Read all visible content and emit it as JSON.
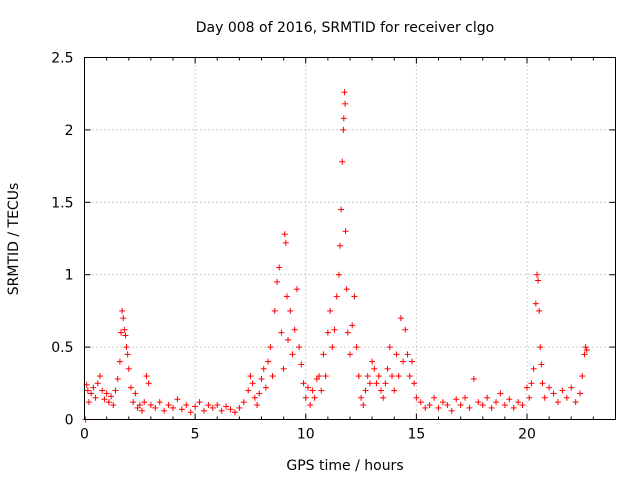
{
  "chart_data": {
    "type": "scatter",
    "title": "Day 008 of 2016, SRMTID for receiver clgo",
    "xlabel": "GPS time / hours",
    "ylabel": "SRMTID / TECUs",
    "xlim": [
      0,
      24
    ],
    "ylim": [
      0,
      2.5
    ],
    "x_ticks": [
      0,
      5,
      10,
      15,
      20
    ],
    "y_ticks": [
      0,
      0.5,
      1,
      1.5,
      2,
      2.5
    ],
    "x_tick_labels": [
      "0",
      "5",
      "10",
      "15",
      "20"
    ],
    "y_tick_labels": [
      "0",
      "0.5",
      "1",
      "1.5",
      "2",
      "2.5"
    ],
    "grid": true,
    "marker": "plus",
    "color": "#ff0000",
    "series": [
      {
        "name": "clgo",
        "points": [
          [
            0.05,
            0.0
          ],
          [
            0.1,
            0.24
          ],
          [
            0.15,
            0.2
          ],
          [
            0.2,
            0.12
          ],
          [
            0.3,
            0.18
          ],
          [
            0.4,
            0.22
          ],
          [
            0.5,
            0.15
          ],
          [
            0.6,
            0.25
          ],
          [
            0.7,
            0.3
          ],
          [
            0.8,
            0.2
          ],
          [
            0.9,
            0.14
          ],
          [
            1.0,
            0.18
          ],
          [
            1.1,
            0.12
          ],
          [
            1.2,
            0.16
          ],
          [
            1.3,
            0.1
          ],
          [
            1.4,
            0.2
          ],
          [
            1.5,
            0.28
          ],
          [
            1.6,
            0.4
          ],
          [
            1.65,
            0.6
          ],
          [
            1.7,
            0.75
          ],
          [
            1.75,
            0.7
          ],
          [
            1.8,
            0.62
          ],
          [
            1.85,
            0.58
          ],
          [
            1.9,
            0.5
          ],
          [
            1.95,
            0.45
          ],
          [
            2.0,
            0.35
          ],
          [
            2.1,
            0.22
          ],
          [
            2.2,
            0.12
          ],
          [
            2.3,
            0.18
          ],
          [
            2.4,
            0.08
          ],
          [
            2.5,
            0.1
          ],
          [
            2.6,
            0.06
          ],
          [
            2.7,
            0.12
          ],
          [
            2.8,
            0.3
          ],
          [
            2.9,
            0.25
          ],
          [
            3.0,
            0.1
          ],
          [
            3.2,
            0.08
          ],
          [
            3.4,
            0.12
          ],
          [
            3.6,
            0.06
          ],
          [
            3.8,
            0.1
          ],
          [
            4.0,
            0.08
          ],
          [
            4.2,
            0.14
          ],
          [
            4.4,
            0.07
          ],
          [
            4.6,
            0.1
          ],
          [
            4.8,
            0.05
          ],
          [
            5.0,
            0.09
          ],
          [
            5.2,
            0.12
          ],
          [
            5.4,
            0.06
          ],
          [
            5.6,
            0.1
          ],
          [
            5.8,
            0.08
          ],
          [
            6.0,
            0.1
          ],
          [
            6.2,
            0.06
          ],
          [
            6.4,
            0.09
          ],
          [
            6.6,
            0.07
          ],
          [
            6.8,
            0.05
          ],
          [
            7.0,
            0.08
          ],
          [
            7.2,
            0.12
          ],
          [
            7.4,
            0.2
          ],
          [
            7.5,
            0.3
          ],
          [
            7.6,
            0.25
          ],
          [
            7.7,
            0.15
          ],
          [
            7.8,
            0.1
          ],
          [
            7.9,
            0.18
          ],
          [
            8.0,
            0.28
          ],
          [
            8.1,
            0.35
          ],
          [
            8.2,
            0.22
          ],
          [
            8.3,
            0.4
          ],
          [
            8.4,
            0.5
          ],
          [
            8.5,
            0.3
          ],
          [
            8.6,
            0.75
          ],
          [
            8.7,
            0.95
          ],
          [
            8.8,
            1.05
          ],
          [
            8.9,
            0.6
          ],
          [
            9.0,
            0.35
          ],
          [
            9.05,
            1.28
          ],
          [
            9.1,
            1.22
          ],
          [
            9.15,
            0.85
          ],
          [
            9.2,
            0.55
          ],
          [
            9.3,
            0.75
          ],
          [
            9.4,
            0.45
          ],
          [
            9.5,
            0.62
          ],
          [
            9.6,
            0.9
          ],
          [
            9.7,
            0.5
          ],
          [
            9.8,
            0.38
          ],
          [
            9.9,
            0.25
          ],
          [
            10.0,
            0.15
          ],
          [
            10.1,
            0.22
          ],
          [
            10.2,
            0.1
          ],
          [
            10.3,
            0.2
          ],
          [
            10.4,
            0.15
          ],
          [
            10.5,
            0.28
          ],
          [
            10.6,
            0.3
          ],
          [
            10.7,
            0.2
          ],
          [
            10.8,
            0.45
          ],
          [
            10.9,
            0.3
          ],
          [
            11.0,
            0.6
          ],
          [
            11.1,
            0.75
          ],
          [
            11.2,
            0.5
          ],
          [
            11.3,
            0.62
          ],
          [
            11.4,
            0.85
          ],
          [
            11.5,
            1.0
          ],
          [
            11.55,
            1.2
          ],
          [
            11.6,
            1.45
          ],
          [
            11.65,
            1.78
          ],
          [
            11.7,
            2.0
          ],
          [
            11.72,
            2.08
          ],
          [
            11.75,
            2.26
          ],
          [
            11.78,
            2.18
          ],
          [
            11.8,
            1.3
          ],
          [
            11.85,
            0.9
          ],
          [
            11.9,
            0.6
          ],
          [
            12.0,
            0.45
          ],
          [
            12.1,
            0.65
          ],
          [
            12.2,
            0.85
          ],
          [
            12.3,
            0.5
          ],
          [
            12.4,
            0.3
          ],
          [
            12.5,
            0.15
          ],
          [
            12.6,
            0.1
          ],
          [
            12.7,
            0.2
          ],
          [
            12.8,
            0.3
          ],
          [
            12.9,
            0.25
          ],
          [
            13.0,
            0.4
          ],
          [
            13.1,
            0.35
          ],
          [
            13.2,
            0.25
          ],
          [
            13.3,
            0.3
          ],
          [
            13.4,
            0.2
          ],
          [
            13.5,
            0.15
          ],
          [
            13.6,
            0.25
          ],
          [
            13.7,
            0.35
          ],
          [
            13.8,
            0.5
          ],
          [
            13.9,
            0.3
          ],
          [
            14.0,
            0.2
          ],
          [
            14.1,
            0.45
          ],
          [
            14.2,
            0.3
          ],
          [
            14.3,
            0.7
          ],
          [
            14.4,
            0.4
          ],
          [
            14.5,
            0.62
          ],
          [
            14.6,
            0.45
          ],
          [
            14.7,
            0.3
          ],
          [
            14.8,
            0.4
          ],
          [
            14.9,
            0.25
          ],
          [
            15.0,
            0.15
          ],
          [
            15.2,
            0.12
          ],
          [
            15.4,
            0.08
          ],
          [
            15.6,
            0.1
          ],
          [
            15.8,
            0.15
          ],
          [
            16.0,
            0.08
          ],
          [
            16.2,
            0.12
          ],
          [
            16.4,
            0.1
          ],
          [
            16.6,
            0.06
          ],
          [
            16.8,
            0.14
          ],
          [
            17.0,
            0.1
          ],
          [
            17.2,
            0.15
          ],
          [
            17.4,
            0.08
          ],
          [
            17.6,
            0.28
          ],
          [
            17.8,
            0.12
          ],
          [
            18.0,
            0.1
          ],
          [
            18.2,
            0.15
          ],
          [
            18.4,
            0.08
          ],
          [
            18.6,
            0.12
          ],
          [
            18.8,
            0.18
          ],
          [
            19.0,
            0.1
          ],
          [
            19.2,
            0.14
          ],
          [
            19.4,
            0.08
          ],
          [
            19.6,
            0.12
          ],
          [
            19.8,
            0.1
          ],
          [
            20.0,
            0.22
          ],
          [
            20.1,
            0.15
          ],
          [
            20.2,
            0.25
          ],
          [
            20.3,
            0.35
          ],
          [
            20.4,
            0.8
          ],
          [
            20.45,
            1.0
          ],
          [
            20.5,
            0.96
          ],
          [
            20.55,
            0.75
          ],
          [
            20.6,
            0.5
          ],
          [
            20.65,
            0.38
          ],
          [
            20.7,
            0.25
          ],
          [
            20.8,
            0.15
          ],
          [
            21.0,
            0.22
          ],
          [
            21.2,
            0.18
          ],
          [
            21.4,
            0.12
          ],
          [
            21.6,
            0.2
          ],
          [
            21.8,
            0.15
          ],
          [
            22.0,
            0.22
          ],
          [
            22.2,
            0.12
          ],
          [
            22.4,
            0.18
          ],
          [
            22.5,
            0.3
          ],
          [
            22.6,
            0.45
          ],
          [
            22.65,
            0.5
          ],
          [
            22.7,
            0.48
          ]
        ]
      }
    ]
  }
}
